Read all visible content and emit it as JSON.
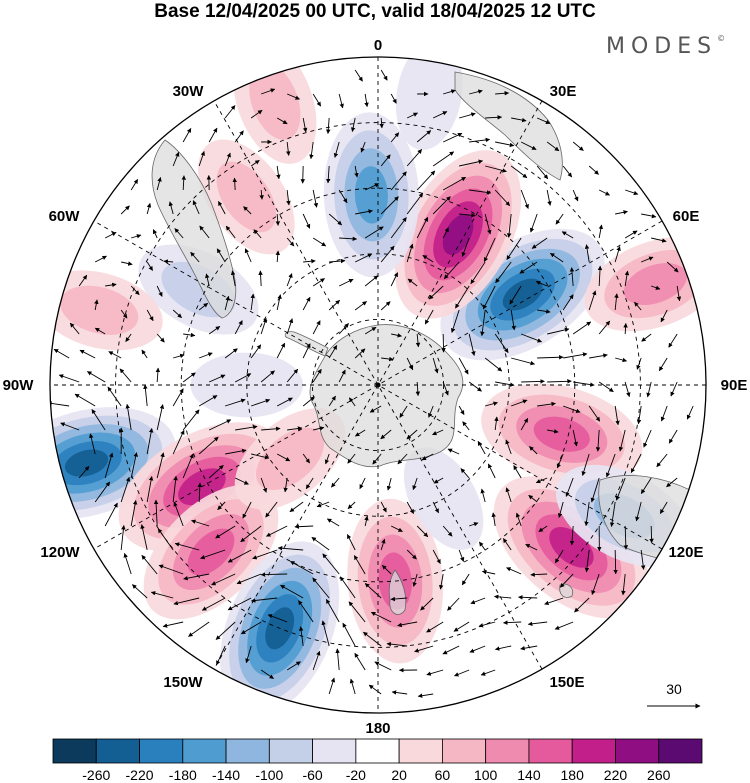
{
  "title": "Base 12/04/2025 00 UTC, valid 18/04/2025 12 UTC",
  "brand": "MODES",
  "brand_mark": "©",
  "longitude_labels": {
    "0": "0",
    "30E": "30E",
    "60E": "60E",
    "90E": "90E",
    "120E": "120E",
    "150E": "150E",
    "180": "180",
    "150W": "150W",
    "120W": "120W",
    "90W": "90W",
    "60W": "60W",
    "30W": "30W"
  },
  "wind_reference": {
    "value": "30"
  },
  "colorbar": {
    "colors": [
      "#0b3a5c",
      "#135e92",
      "#2a7fbd",
      "#4f9cd0",
      "#8fb6de",
      "#c4cfe8",
      "#e6e4f2",
      "#ffffff",
      "#f9d9dc",
      "#f6b7c4",
      "#f08bb0",
      "#e55a9c",
      "#c21f8a",
      "#8f0e82",
      "#5a0a70"
    ],
    "ticks": [
      "-260",
      "-220",
      "-180",
      "-140",
      "-100",
      "-60",
      "-20",
      "20",
      "60",
      "100",
      "140",
      "180",
      "220",
      "260"
    ]
  },
  "anomalies": [
    {
      "lon": -105,
      "colat": 0.92,
      "value": -230
    },
    {
      "lon": -120,
      "colat": 0.62,
      "value": 190
    },
    {
      "lon": -135,
      "colat": 0.72,
      "value": 140
    },
    {
      "lon": -158,
      "colat": 0.8,
      "value": -250
    },
    {
      "lon": 175,
      "colat": 0.6,
      "value": 160
    },
    {
      "lon": 130,
      "colat": 0.77,
      "value": 185
    },
    {
      "lon": 105,
      "colat": 0.58,
      "value": 155
    },
    {
      "lon": 58,
      "colat": 0.52,
      "value": -240
    },
    {
      "lon": 28,
      "colat": 0.52,
      "value": 250
    },
    {
      "lon": -2,
      "colat": 0.58,
      "value": -150
    },
    {
      "lon": -35,
      "colat": 0.7,
      "value": 60
    },
    {
      "lon": -62,
      "colat": 0.62,
      "value": -90
    },
    {
      "lon": 70,
      "colat": 0.9,
      "value": 110
    },
    {
      "lon": 118,
      "colat": 0.85,
      "value": -120
    },
    {
      "lon": -20,
      "colat": 0.92,
      "value": 70
    },
    {
      "lon": -130,
      "colat": 0.35,
      "value": 60
    },
    {
      "lon": -90,
      "colat": 0.4,
      "value": -50
    },
    {
      "lon": 150,
      "colat": 0.4,
      "value": -50
    },
    {
      "lon": 10,
      "colat": 0.9,
      "value": -40
    },
    {
      "lon": -75,
      "colat": 0.88,
      "value": 60
    }
  ]
}
